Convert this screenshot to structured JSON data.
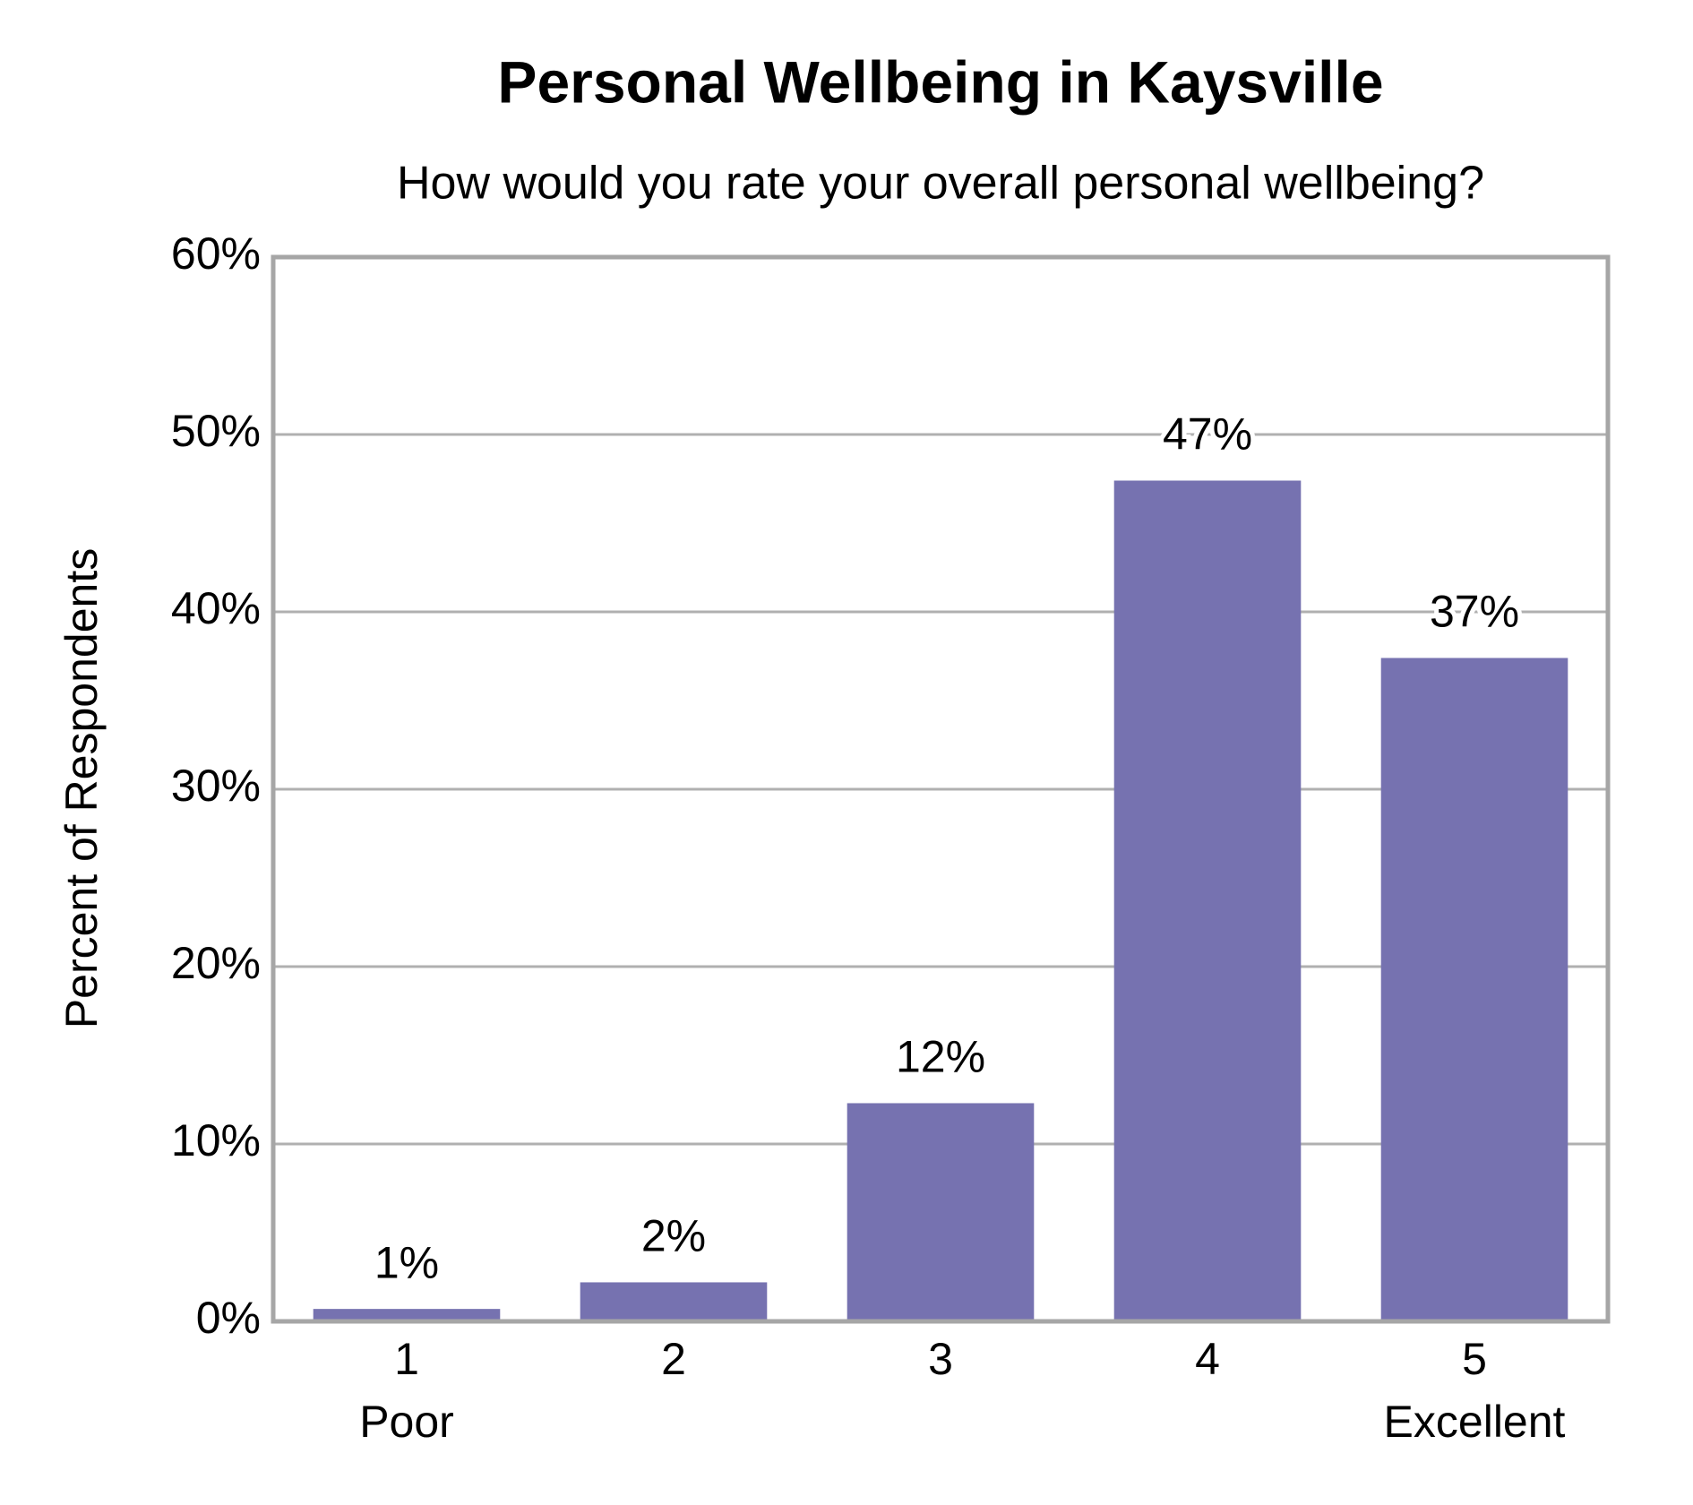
{
  "chart_data": {
    "type": "bar",
    "title": "Personal Wellbeing in Kaysville",
    "subtitle": "How would you rate your overall personal wellbeing?",
    "y_label": "Percent of Respondents",
    "categories": [
      "1",
      "2",
      "3",
      "4",
      "5"
    ],
    "category_sublabels": [
      "Poor",
      null,
      null,
      null,
      "Excellent"
    ],
    "values": [
      0.7,
      2.2,
      12.3,
      47.4,
      37.4
    ],
    "value_labels": [
      "1%",
      "2%",
      "12%",
      "47%",
      "37%"
    ],
    "color": "#7672b0",
    "ylim": [
      0,
      60
    ],
    "yticks": [
      {
        "value": 0,
        "label": "0%"
      },
      {
        "value": 10,
        "label": "10%"
      },
      {
        "value": 20,
        "label": "20%"
      },
      {
        "value": 30,
        "label": "30%"
      },
      {
        "value": 40,
        "label": "40%"
      },
      {
        "value": 50,
        "label": "50%"
      },
      {
        "value": 60,
        "label": "60%"
      }
    ],
    "grid": true
  }
}
